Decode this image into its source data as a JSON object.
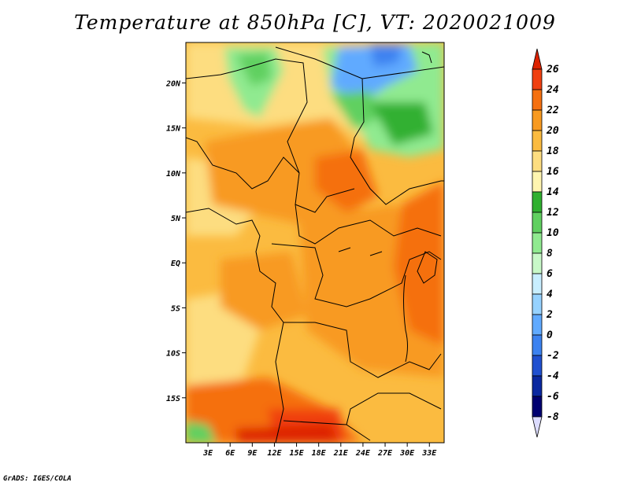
{
  "title": "Temperature at 850hPa [C], VT: 2020021009",
  "credit": "GrADS: IGES/COLA",
  "map": {
    "lat_ticks": [
      {
        "label": "20N",
        "lat": 20
      },
      {
        "label": "15N",
        "lat": 15
      },
      {
        "label": "10N",
        "lat": 10
      },
      {
        "label": "5N",
        "lat": 5
      },
      {
        "label": "EQ",
        "lat": 0
      },
      {
        "label": "5S",
        "lat": -5
      },
      {
        "label": "10S",
        "lat": -10
      },
      {
        "label": "15S",
        "lat": -15
      }
    ],
    "lon_ticks": [
      {
        "label": "3E",
        "lon": 3
      },
      {
        "label": "6E",
        "lon": 6
      },
      {
        "label": "9E",
        "lon": 9
      },
      {
        "label": "12E",
        "lon": 12
      },
      {
        "label": "15E",
        "lon": 15
      },
      {
        "label": "18E",
        "lon": 18
      },
      {
        "label": "21E",
        "lon": 21
      },
      {
        "label": "24E",
        "lon": 24
      },
      {
        "label": "27E",
        "lon": 27
      },
      {
        "label": "30E",
        "lon": 30
      },
      {
        "label": "33E",
        "lon": 33
      }
    ],
    "extent": {
      "lon_min": 0,
      "lon_max": 35,
      "lat_min": -20,
      "lat_max": 24.5
    }
  },
  "colorbar": {
    "levels": [
      26,
      24,
      22,
      20,
      18,
      16,
      14,
      12,
      10,
      8,
      6,
      4,
      2,
      0,
      -2,
      -4,
      -6,
      -8
    ],
    "colors": [
      "#dd2200",
      "#f04010",
      "#f57010",
      "#f89a20",
      "#fbbb40",
      "#fddd80",
      "#fff5b0",
      "#30b030",
      "#60d060",
      "#90ea90",
      "#c8f8c8",
      "#c8eeff",
      "#96d2ff",
      "#60aaff",
      "#3c82f0",
      "#2050d0",
      "#0a28a0",
      "#000070",
      "#dcdcff"
    ]
  }
}
